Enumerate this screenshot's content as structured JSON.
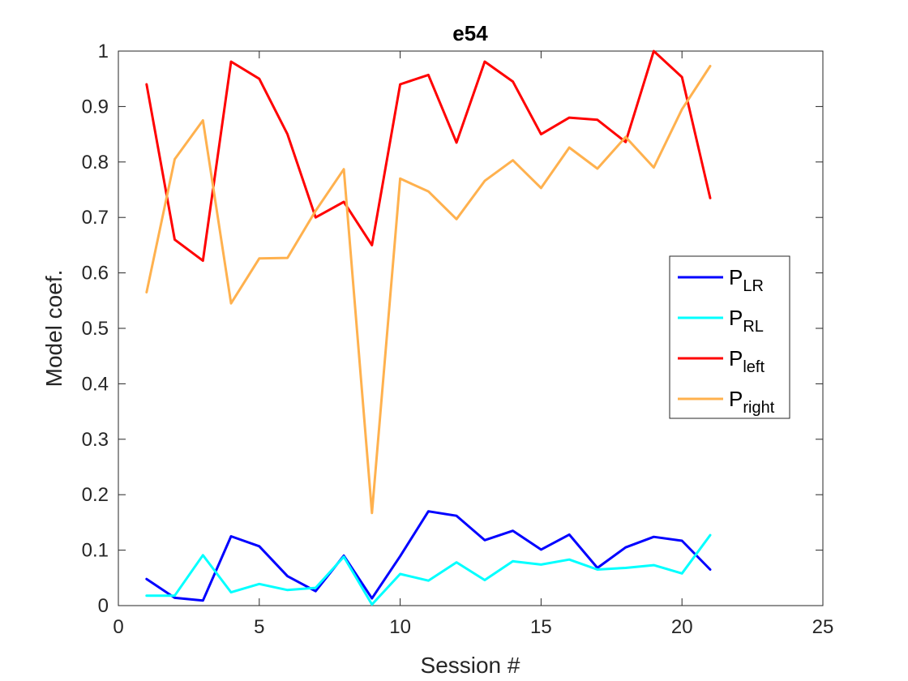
{
  "chart_data": {
    "type": "line",
    "title": "e54",
    "xlabel": "Session #",
    "ylabel": "Model coef.",
    "xlim": [
      0,
      25
    ],
    "ylim": [
      0,
      1
    ],
    "xticks": [
      0,
      5,
      10,
      15,
      20,
      25
    ],
    "yticks": [
      0,
      0.1,
      0.2,
      0.3,
      0.4,
      0.5,
      0.6,
      0.7,
      0.8,
      0.9,
      1
    ],
    "xtick_labels": [
      "0",
      "5",
      "10",
      "15",
      "20",
      "25"
    ],
    "ytick_labels": [
      "0",
      "0.1",
      "0.2",
      "0.3",
      "0.4",
      "0.5",
      "0.6",
      "0.7",
      "0.8",
      "0.9",
      "1"
    ],
    "grid": false,
    "legend_position": "right",
    "x": [
      1,
      2,
      3,
      4,
      5,
      6,
      7,
      8,
      9,
      10,
      11,
      12,
      13,
      14,
      15,
      16,
      17,
      18,
      19,
      20,
      21
    ],
    "series": [
      {
        "name": "P_LR",
        "legend_main": "P",
        "legend_sub": "LR",
        "color": "#0000ff",
        "values": [
          0.048,
          0.014,
          0.009,
          0.125,
          0.107,
          0.053,
          0.026,
          0.09,
          0.013,
          0.089,
          0.17,
          0.162,
          0.118,
          0.135,
          0.101,
          0.128,
          0.068,
          0.105,
          0.124,
          0.117,
          0.065
        ]
      },
      {
        "name": "P_RL",
        "legend_main": "P",
        "legend_sub": "RL",
        "color": "#00ffff",
        "values": [
          0.018,
          0.018,
          0.091,
          0.024,
          0.039,
          0.028,
          0.032,
          0.088,
          0.002,
          0.057,
          0.045,
          0.078,
          0.046,
          0.08,
          0.074,
          0.083,
          0.065,
          0.068,
          0.073,
          0.058,
          0.127
        ]
      },
      {
        "name": "P_left",
        "legend_main": "P",
        "legend_sub": "left",
        "color": "#ff0000",
        "values": [
          0.94,
          0.66,
          0.622,
          0.981,
          0.95,
          0.85,
          0.7,
          0.728,
          0.65,
          0.94,
          0.957,
          0.835,
          0.981,
          0.945,
          0.85,
          0.88,
          0.876,
          0.836,
          1.0,
          0.953,
          0.735
        ]
      },
      {
        "name": "P_right",
        "legend_main": "P",
        "legend_sub": "right",
        "color": "#ffb14e",
        "values": [
          0.565,
          0.805,
          0.875,
          0.545,
          0.626,
          0.627,
          0.712,
          0.787,
          0.167,
          0.77,
          0.747,
          0.697,
          0.766,
          0.803,
          0.753,
          0.826,
          0.788,
          0.845,
          0.79,
          0.895,
          0.973
        ]
      }
    ]
  }
}
